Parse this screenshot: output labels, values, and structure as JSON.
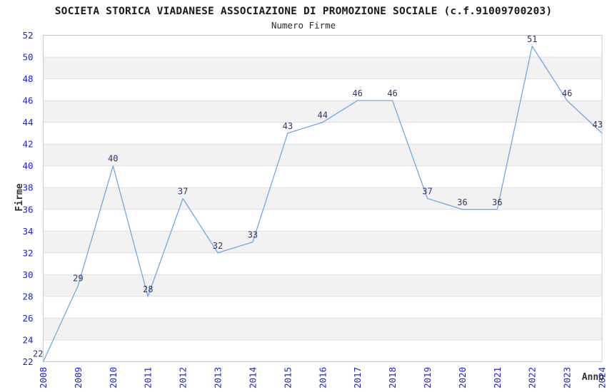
{
  "chart_data": {
    "type": "line",
    "title": "SOCIETA STORICA VIADANESE ASSOCIAZIONE DI PROMOZIONE SOCIALE (c.f.91009700203)",
    "subtitle": "Numero Firme",
    "xlabel": "Anno",
    "ylabel": "Firme",
    "categories": [
      "2008",
      "2009",
      "2010",
      "2011",
      "2012",
      "2013",
      "2014",
      "2015",
      "2016",
      "2017",
      "2018",
      "2019",
      "2020",
      "2021",
      "2022",
      "2023",
      "2024"
    ],
    "values": [
      22,
      29,
      40,
      28,
      37,
      32,
      33,
      43,
      44,
      46,
      46,
      37,
      36,
      36,
      51,
      46,
      43
    ],
    "ylim": [
      22,
      52
    ],
    "ytick_step": 2,
    "grid": "horizontal",
    "background_bands": "alternating 2-unit horizontal stripes",
    "legend_position": "none",
    "point_labels_visible": true,
    "point_markers": "none"
  },
  "colors": {
    "line": "#6FA8E5",
    "band": "#F2F2F2",
    "grid": "#E0E0E0",
    "plot_border": "#C9C9C9",
    "tick_label": "#2222CC",
    "data_label": "#333366",
    "title_text": "#1A1A1A",
    "axis_title_text": "#333333",
    "background": "#FFFFFF"
  }
}
